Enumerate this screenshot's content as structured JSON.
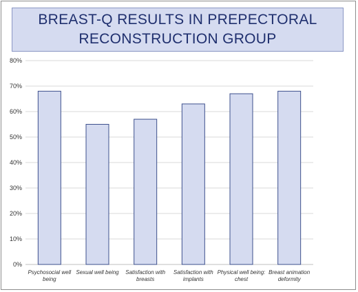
{
  "chart_data": {
    "type": "bar",
    "title_lines": [
      "BREAST-Q RESULTS IN PREPECTORAL",
      "RECONSTRUCTION GROUP"
    ],
    "categories": [
      [
        "Psychosocial well",
        "being"
      ],
      [
        "Sexual well being"
      ],
      [
        "Satisfaction with",
        "breasts"
      ],
      [
        "Satisfaction with",
        "implants"
      ],
      [
        "Physical well being:",
        "chest"
      ],
      [
        "Breast animation",
        "deformity"
      ]
    ],
    "values": [
      68,
      55,
      57,
      63,
      67,
      68
    ],
    "ylim": [
      0,
      80
    ],
    "yticks": [
      "0%",
      "10%",
      "20%",
      "30%",
      "40%",
      "50%",
      "60%",
      "70%",
      "80%"
    ],
    "grid": true,
    "bar_color": "#d5dbf0",
    "bar_edge_color": "#3c4f8c",
    "grid_color": "#d9d9d9"
  }
}
